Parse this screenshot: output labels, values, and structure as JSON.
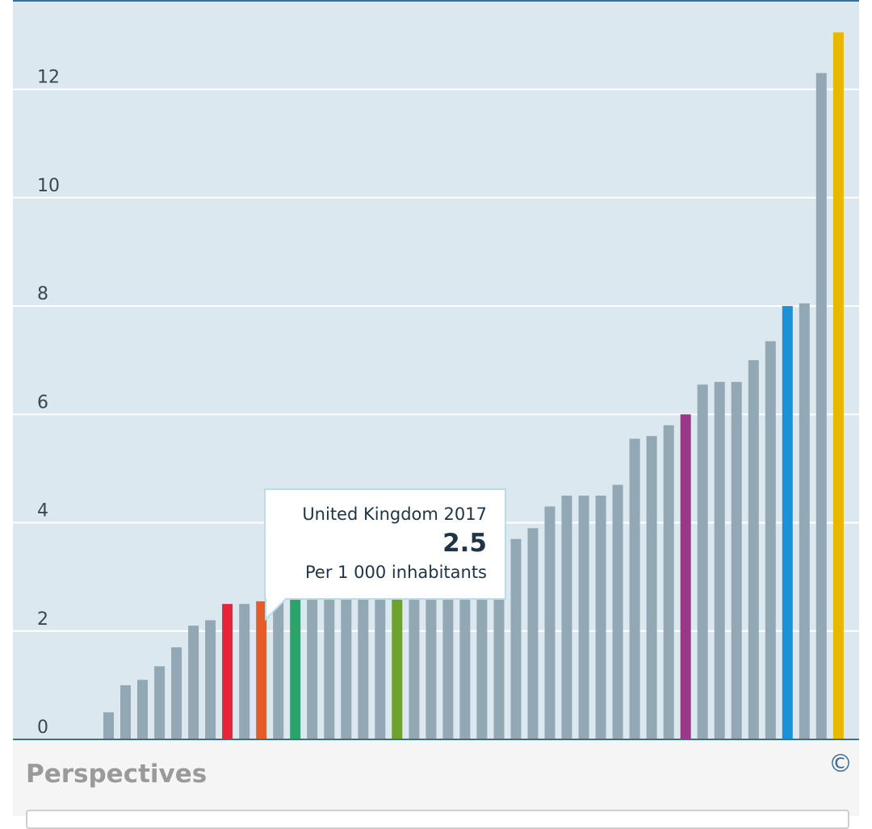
{
  "chart_data": {
    "type": "bar",
    "y_ticks": [
      "0",
      "2",
      "4",
      "6",
      "8",
      "10",
      "12"
    ],
    "ylim": [
      0,
      13.5
    ],
    "grid": true,
    "values": [
      0.5,
      1.0,
      1.1,
      1.35,
      1.7,
      2.1,
      2.2,
      2.5,
      2.5,
      2.55,
      2.6,
      2.65,
      2.7,
      2.75,
      2.8,
      2.85,
      2.9,
      2.95,
      3.0,
      3.05,
      3.1,
      3.2,
      3.3,
      3.5,
      3.7,
      3.9,
      4.3,
      4.5,
      4.5,
      4.5,
      4.7,
      5.55,
      5.6,
      5.8,
      6.0,
      6.55,
      6.6,
      6.6,
      7.0,
      7.35,
      8.0,
      8.05,
      12.3,
      13.05
    ],
    "highlight_colors": {
      "7": "#e5263a",
      "9": "#e65b27",
      "11": "#2aa46b",
      "17": "#6da22d",
      "34": "#9b3788",
      "40": "#1e90d6",
      "43": "#e6b800"
    },
    "default_bar_color": "#93a8b5"
  },
  "tooltip": {
    "title": "United Kingdom 2017",
    "value": "2.5",
    "unit": "Per 1 000 inhabitants"
  },
  "footer": {
    "title": "Perspectives",
    "copyright_symbol": "©"
  }
}
